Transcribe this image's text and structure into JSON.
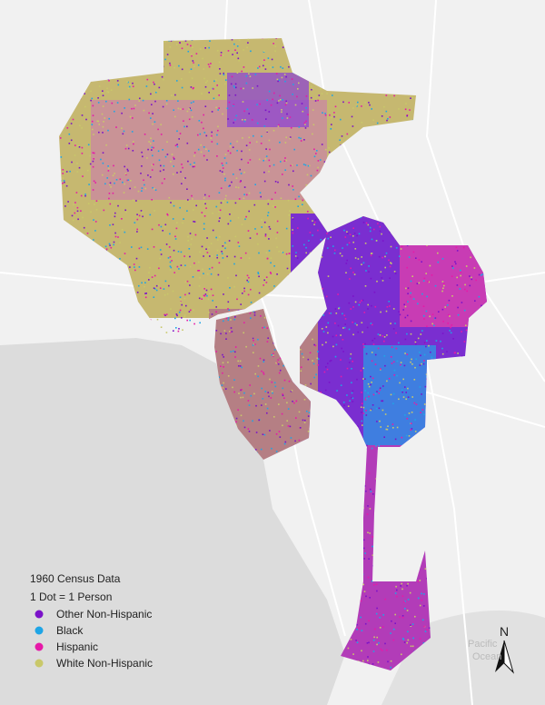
{
  "legend": {
    "title": "1960 Census Data",
    "subtitle": "1 Dot = 1 Person",
    "items": [
      {
        "label": "Other Non-Hispanic",
        "color": "#7b12c9"
      },
      {
        "label": "Black",
        "color": "#1ea5e6"
      },
      {
        "label": "Hispanic",
        "color": "#e619a8"
      },
      {
        "label": "White Non-Hispanic",
        "color": "#c9c86a"
      }
    ]
  },
  "map_labels": {
    "ocean_line1": "Pacific",
    "ocean_line2": "Ocean",
    "north": "N"
  }
}
